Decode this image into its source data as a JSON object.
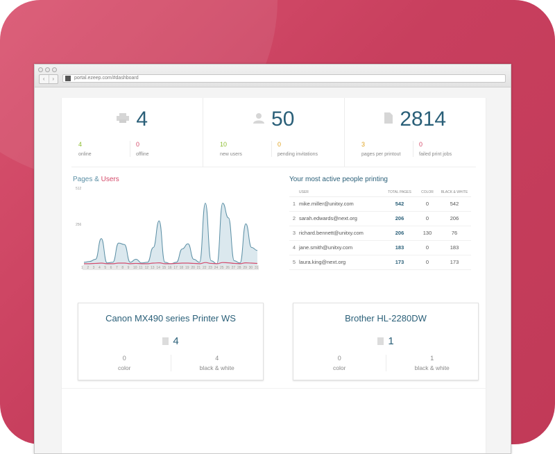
{
  "browser": {
    "url": "portal.ezeep.com/#dashboard",
    "nav_back": "‹",
    "nav_forward": "›"
  },
  "stats": [
    {
      "icon": "printer-icon",
      "value": "4",
      "sub": [
        {
          "num": "4",
          "label": "online",
          "color": "green"
        },
        {
          "num": "0",
          "label": "offline",
          "color": "red"
        }
      ]
    },
    {
      "icon": "user-icon",
      "value": "50",
      "sub": [
        {
          "num": "10",
          "label": "new users",
          "color": "green"
        },
        {
          "num": "0",
          "label": "pending invitations",
          "color": "orange"
        }
      ]
    },
    {
      "icon": "document-icon",
      "value": "2814",
      "sub": [
        {
          "num": "3",
          "label": "pages per printout",
          "color": "orange"
        },
        {
          "num": "0",
          "label": "failed print jobs",
          "color": "red"
        }
      ]
    }
  ],
  "chart_title": {
    "pages": "Pages",
    "amp": " & ",
    "users": "Users"
  },
  "chart_data": {
    "type": "area",
    "title": "Pages & Users",
    "ylim": [
      0,
      512
    ],
    "yticks": [
      "512",
      "256"
    ],
    "x": [
      "1",
      "2",
      "3",
      "4",
      "5",
      "6",
      "7",
      "8",
      "9",
      "10",
      "11",
      "12",
      "13",
      "14",
      "15",
      "16",
      "17",
      "18",
      "19",
      "20",
      "21",
      "22",
      "23",
      "24",
      "25",
      "26",
      "27",
      "28",
      "29",
      "30",
      "31"
    ],
    "series": [
      {
        "name": "Pages",
        "color": "#5b8fa5",
        "values": [
          20,
          25,
          40,
          180,
          15,
          20,
          150,
          140,
          20,
          40,
          15,
          20,
          120,
          300,
          20,
          10,
          20,
          110,
          145,
          40,
          20,
          420,
          30,
          10,
          420,
          320,
          30,
          15,
          280,
          120,
          100
        ]
      },
      {
        "name": "Users",
        "color": "#d44a6a",
        "values": [
          10,
          10,
          12,
          14,
          10,
          10,
          14,
          14,
          10,
          12,
          10,
          10,
          14,
          16,
          10,
          10,
          12,
          14,
          14,
          12,
          10,
          18,
          12,
          10,
          18,
          16,
          12,
          10,
          16,
          14,
          12
        ]
      }
    ]
  },
  "table": {
    "title": "Your most active people printing",
    "headers": {
      "user": "USER",
      "total": "TOTAL PAGES",
      "color": "COLOR",
      "bw": "BLACK & WHITE"
    },
    "rows": [
      {
        "idx": "1",
        "user": "mike.miller@unitxy.com",
        "total": "542",
        "color": "0",
        "bw": "542"
      },
      {
        "idx": "2",
        "user": "sarah.edwards@next.org",
        "total": "206",
        "color": "0",
        "bw": "206"
      },
      {
        "idx": "3",
        "user": "richard.bennett@unitxy.com",
        "total": "206",
        "color": "130",
        "bw": "76"
      },
      {
        "idx": "4",
        "user": "jane.smith@unitxy.com",
        "total": "183",
        "color": "0",
        "bw": "183"
      },
      {
        "idx": "5",
        "user": "laura.king@next.org",
        "total": "173",
        "color": "0",
        "bw": "173"
      }
    ]
  },
  "printers": [
    {
      "name": "Canon MX490 series Printer WS",
      "count": "4",
      "color_num": "0",
      "color_label": "color",
      "bw_num": "4",
      "bw_label": "black & white"
    },
    {
      "name": "Brother HL-2280DW",
      "count": "1",
      "color_num": "0",
      "color_label": "color",
      "bw_num": "1",
      "bw_label": "black & white"
    }
  ],
  "colors": {
    "brand": "#c83f5e",
    "accent": "#2a5f78",
    "green": "#8cbd2f",
    "red": "#d44a6a",
    "orange": "#e0a321"
  }
}
